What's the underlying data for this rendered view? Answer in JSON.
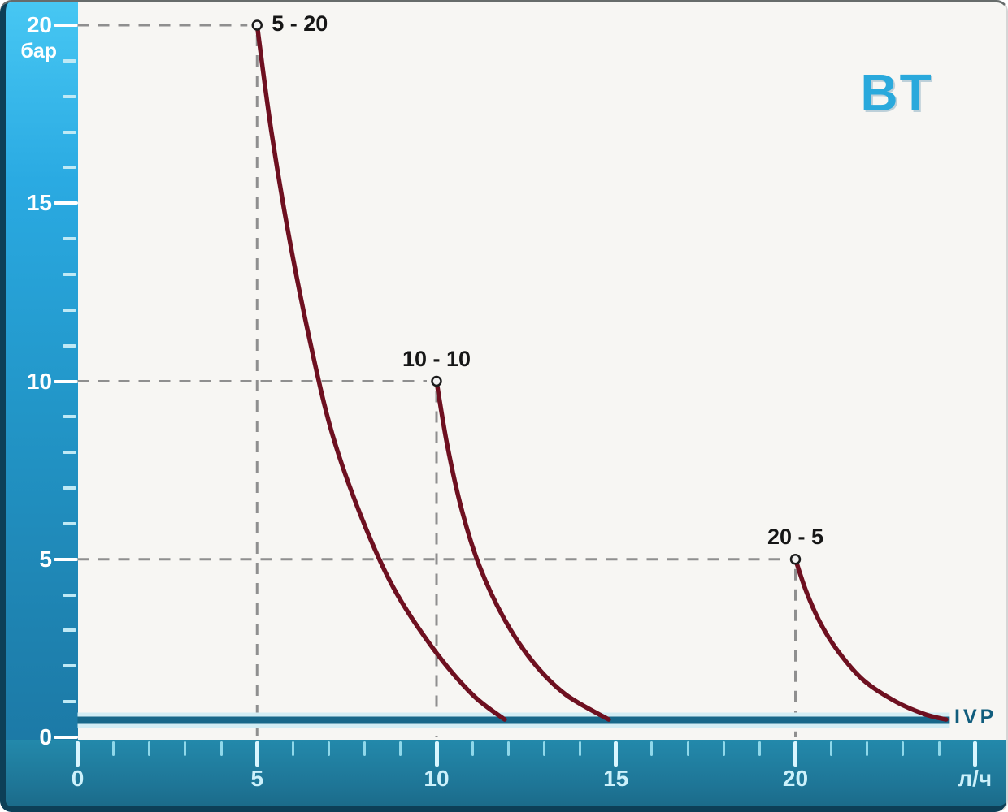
{
  "brand": {
    "logo_text": "BT",
    "color": "#2aa9dc"
  },
  "chart_data": {
    "type": "line",
    "title": "",
    "x_axis": {
      "unit_label": "л/ч",
      "min": 0,
      "max": 25.8,
      "major_ticks": [
        0,
        5,
        10,
        15,
        20
      ],
      "minor_tick_step": 1,
      "unit_label_position": 25
    },
    "y_axis": {
      "unit_label": "бар",
      "min": 0,
      "max": 20,
      "major_ticks": [
        0,
        5,
        10,
        15,
        20
      ],
      "minor_tick_step": 1
    },
    "legend": "none",
    "grid": "dashed guide lines from each curve start point to both axes",
    "series": [
      {
        "name": "5 - 20",
        "label_position": "right",
        "points": [
          [
            5,
            20
          ],
          [
            5.4,
            17
          ],
          [
            5.9,
            14
          ],
          [
            6.5,
            11
          ],
          [
            7.1,
            8.5
          ],
          [
            7.9,
            6.2
          ],
          [
            8.8,
            4.2
          ],
          [
            9.9,
            2.5
          ],
          [
            11,
            1.2
          ],
          [
            11.9,
            0.5
          ]
        ]
      },
      {
        "name": "10 - 10",
        "label_position": "above",
        "points": [
          [
            10,
            10
          ],
          [
            10.3,
            8.2
          ],
          [
            10.7,
            6.4
          ],
          [
            11.2,
            4.8
          ],
          [
            11.9,
            3.3
          ],
          [
            12.7,
            2.1
          ],
          [
            13.6,
            1.2
          ],
          [
            14.8,
            0.5
          ]
        ]
      },
      {
        "name": "20 - 5",
        "label_position": "above",
        "points": [
          [
            20,
            5
          ],
          [
            20.3,
            4.1
          ],
          [
            20.7,
            3.2
          ],
          [
            21.2,
            2.4
          ],
          [
            21.9,
            1.6
          ],
          [
            22.8,
            1.0
          ],
          [
            23.6,
            0.65
          ],
          [
            24.2,
            0.5
          ]
        ]
      }
    ],
    "baseline": {
      "label": "IVP",
      "y": 0.48,
      "x_start": 0,
      "x_end": 24.3
    },
    "colors": {
      "curve": "#6e1020",
      "marker_fill": "#f2f2f2",
      "marker_stroke": "#1c1c1c",
      "guide": "#8f8f8f",
      "baseline": "#17688a",
      "baseline_halo": "#d2edf4",
      "y_band_top": "#47c7f3",
      "y_band_bottom": "#1b74a0",
      "x_band": "#1e7596",
      "axis_label": "#ffffff"
    }
  }
}
